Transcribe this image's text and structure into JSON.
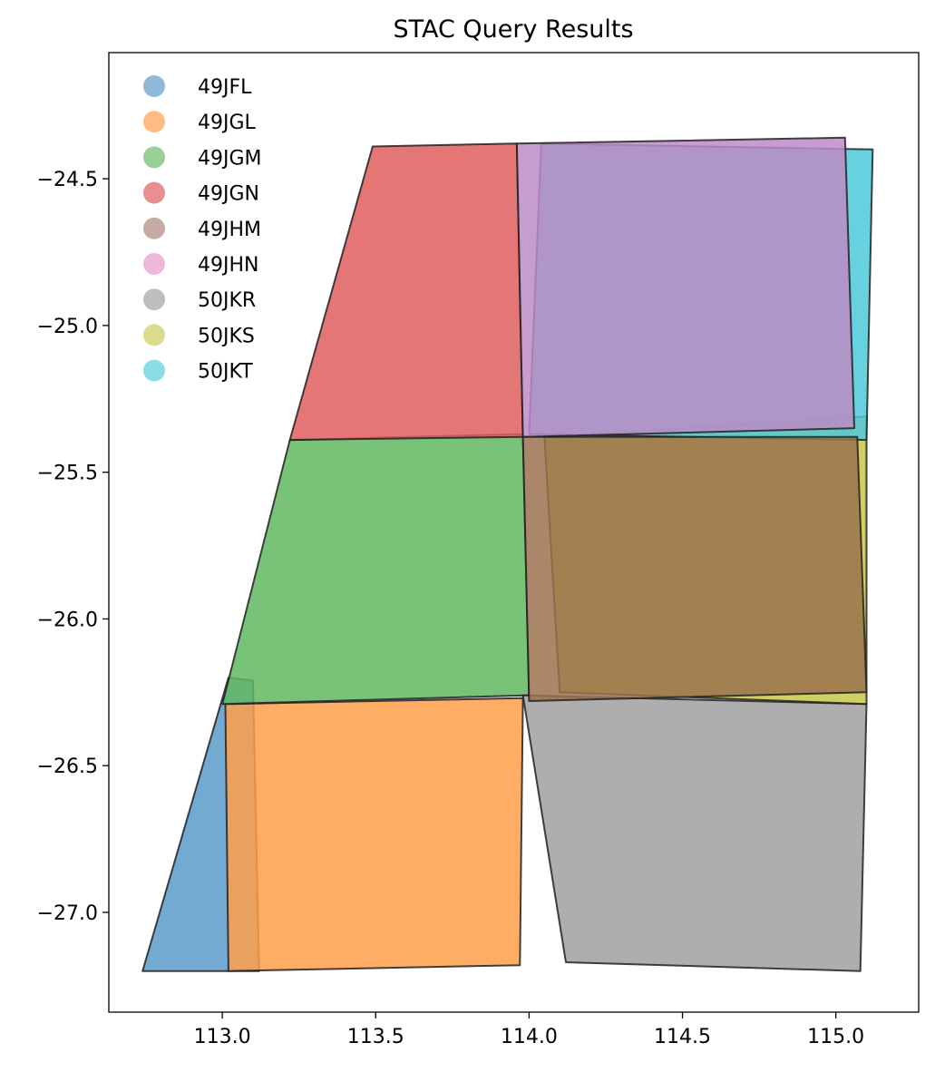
{
  "chart_data": {
    "type": "map-polygons",
    "title": "STAC Query Results",
    "xlabel": "",
    "ylabel": "",
    "xlim": [
      112.63,
      115.27
    ],
    "ylim": [
      -27.34,
      -24.07
    ],
    "xticks": [
      113.0,
      113.5,
      114.0,
      114.5,
      115.0
    ],
    "xtick_labels": [
      "113.0",
      "113.5",
      "114.0",
      "114.5",
      "115.0"
    ],
    "yticks": [
      -24.5,
      -25.0,
      -25.5,
      -26.0,
      -26.5,
      -27.0
    ],
    "ytick_labels": [
      "−24.5",
      "−25.0",
      "−25.5",
      "−26.0",
      "−26.5",
      "−27.0"
    ],
    "grid": false,
    "legend_position": "top-left",
    "series": [
      {
        "name": "49JFL",
        "color": "#5a9bc9",
        "legend_color": "#8eb9da",
        "polygon": [
          [
            112.74,
            -27.2
          ],
          [
            113.02,
            -26.2
          ],
          [
            113.1,
            -26.21
          ],
          [
            113.12,
            -27.2
          ]
        ]
      },
      {
        "name": "49JGL",
        "color": "#ff9f4a",
        "legend_color": "#ffbb82",
        "polygon": [
          [
            113.01,
            -26.29
          ],
          [
            113.98,
            -26.27
          ],
          [
            113.97,
            -27.18
          ],
          [
            113.02,
            -27.2
          ]
        ]
      },
      {
        "name": "49JGM",
        "color": "#62b862",
        "legend_color": "#98d098",
        "polygon": [
          [
            113.22,
            -25.39
          ],
          [
            113.98,
            -25.37
          ],
          [
            114.0,
            -26.26
          ],
          [
            113.0,
            -26.29
          ]
        ]
      },
      {
        "name": "49JGN",
        "color": "#e05e5e",
        "legend_color": "#ea8f8f",
        "polygon": [
          [
            113.49,
            -24.39
          ],
          [
            113.96,
            -24.38
          ],
          [
            113.98,
            -25.38
          ],
          [
            113.22,
            -25.39
          ]
        ]
      },
      {
        "name": "50JKR",
        "color": "#a0a0a0",
        "legend_color": "#bebebe",
        "polygon": [
          [
            113.98,
            -26.26
          ],
          [
            115.1,
            -26.29
          ],
          [
            115.08,
            -27.2
          ],
          [
            114.12,
            -27.17
          ]
        ]
      },
      {
        "name": "50JKS",
        "color": "#c8c846",
        "legend_color": "#dbdb8d",
        "polygon": [
          [
            114.05,
            -25.38
          ],
          [
            115.1,
            -25.31
          ],
          [
            115.1,
            -26.29
          ],
          [
            114.1,
            -26.25
          ]
        ]
      },
      {
        "name": "50JKT",
        "color": "#4ec9d9",
        "legend_color": "#8adce6",
        "polygon": [
          [
            114.04,
            -24.38
          ],
          [
            115.12,
            -24.4
          ],
          [
            115.1,
            -25.39
          ],
          [
            114.0,
            -25.37
          ]
        ]
      },
      {
        "name": "49JHN",
        "color": "#bd8bc5",
        "legend_color": "#f0b7dd",
        "polygon": [
          [
            113.96,
            -24.38
          ],
          [
            115.03,
            -24.36
          ],
          [
            115.06,
            -25.35
          ],
          [
            113.98,
            -25.38
          ]
        ]
      },
      {
        "name": "49JHM",
        "color": "#9a724e",
        "legend_color": "#c6aba3",
        "polygon": [
          [
            113.98,
            -25.38
          ],
          [
            115.07,
            -25.38
          ],
          [
            115.1,
            -26.25
          ],
          [
            114.0,
            -26.28
          ]
        ]
      }
    ],
    "legend_order": [
      "49JFL",
      "49JGL",
      "49JGM",
      "49JGN",
      "49JHM",
      "49JHN",
      "50JKR",
      "50JKS",
      "50JKT"
    ]
  }
}
